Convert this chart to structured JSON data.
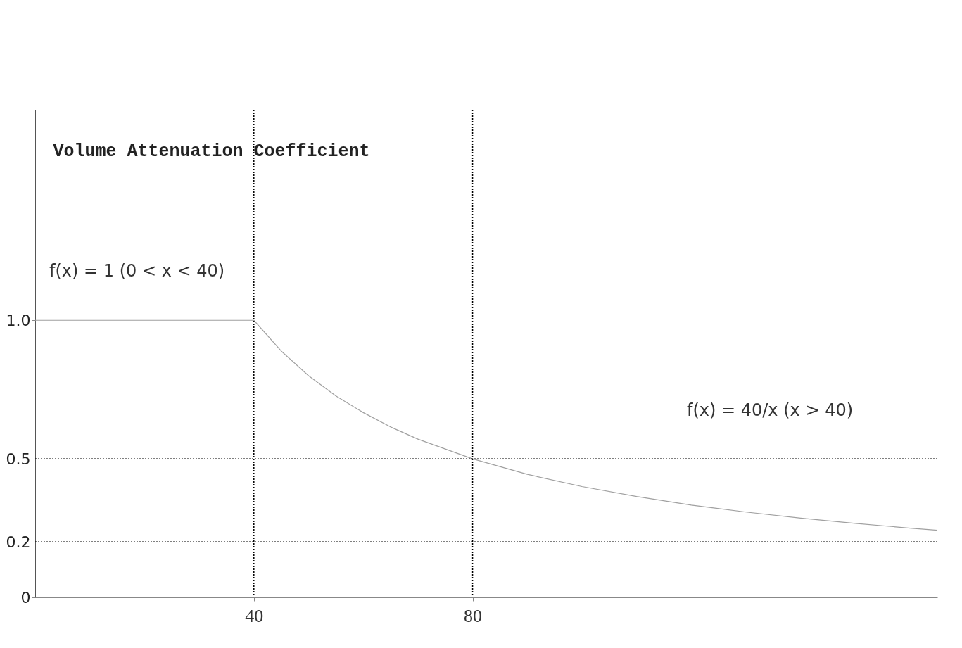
{
  "chart_data": {
    "type": "line",
    "ylabel": "Volume Attenuation Coefficient",
    "x": [
      0,
      10,
      20,
      30,
      40,
      45,
      50,
      55,
      60,
      65,
      70,
      80,
      90,
      100,
      110,
      120,
      130,
      140,
      150,
      160,
      165
    ],
    "series": [
      {
        "color": "#a0a0a0",
        "values": [
          1,
          1,
          1,
          1,
          1,
          0.889,
          0.8,
          0.727,
          0.667,
          0.615,
          0.571,
          0.5,
          0.444,
          0.4,
          0.364,
          0.333,
          0.308,
          0.286,
          0.267,
          0.25,
          0.242
        ]
      }
    ],
    "xlim": [
      0,
      165
    ],
    "ylim": [
      0,
      1.76
    ],
    "xticks": [
      40,
      80
    ],
    "yticks": [
      0,
      0.2,
      0.5,
      {
        "value": 1,
        "label": "1.0"
      }
    ],
    "grid": false,
    "marker": "none",
    "line_style": "solid",
    "ref_lines": [
      {
        "axis": "x",
        "value": 40,
        "line_style": "dotted",
        "color": "#000000"
      },
      {
        "axis": "x",
        "value": 80,
        "line_style": "dotted",
        "color": "#000000"
      },
      {
        "axis": "y",
        "value": 0.5,
        "line_style": "dotted",
        "color": "#000000"
      },
      {
        "axis": "y",
        "value": 0.2,
        "line_style": "dotted",
        "color": "#000000"
      }
    ],
    "annotations": [
      "f(x) = 1 (0 < x < 40)",
      "f(x) = 40/x (x > 40)"
    ]
  }
}
